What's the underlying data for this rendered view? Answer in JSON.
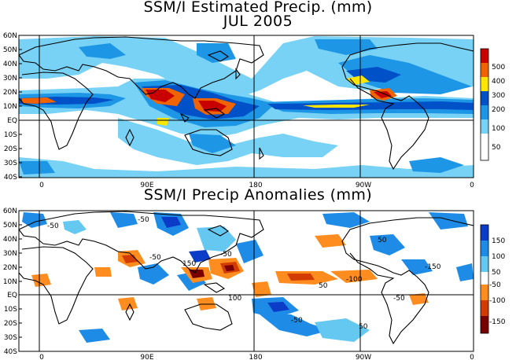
{
  "titles": {
    "line1": "SSM/I Estimated Precip. (mm)",
    "line2": "JUL 2005",
    "line3": "SSM/I Precip Anomalies (mm)"
  },
  "axes": {
    "lat_labels": [
      "60N",
      "50N",
      "40N",
      "30N",
      "20N",
      "10N",
      "EQ",
      "10S",
      "20S",
      "30S",
      "40S"
    ],
    "lon_labels": [
      "0",
      "90E",
      "180",
      "90W",
      "0"
    ]
  },
  "top_colorbar": {
    "labels": [
      "500",
      "400",
      "300",
      "200",
      "100",
      "50"
    ],
    "colors": [
      "#c80000",
      "#f06400",
      "#ffe600",
      "#0050c8",
      "#1e96e6",
      "#78d2f5",
      "#ffffff"
    ]
  },
  "bottom_colorbar": {
    "labels": [
      "150",
      "100",
      "50",
      "-50",
      "-100",
      "-150"
    ],
    "colors": [
      "#0a3cc8",
      "#1e8ce6",
      "#64c8f0",
      "#ffffff",
      "#ff8c1e",
      "#d23c00",
      "#780000"
    ]
  },
  "anomaly_contour_labels": [
    "-50",
    "-50",
    "-50",
    "-100",
    "150",
    "100",
    "50",
    "-150",
    "-50",
    "50",
    "-50",
    "-50",
    "50"
  ]
}
